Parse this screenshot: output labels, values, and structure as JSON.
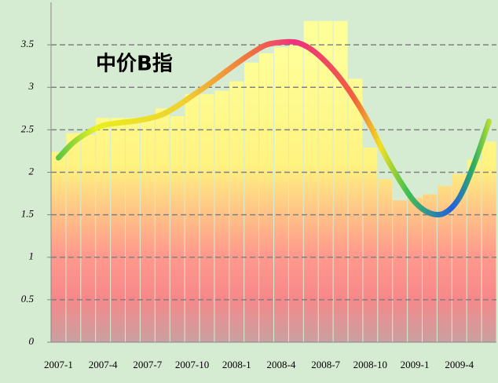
{
  "chart_data": {
    "type": "bar",
    "annotation": "中价B指",
    "categories": [
      "2007-1",
      null,
      null,
      "2007-4",
      null,
      null,
      "2007-7",
      null,
      null,
      "2007-10",
      null,
      null,
      "2008-1",
      null,
      null,
      "2008-4",
      null,
      null,
      "2008-7",
      null,
      null,
      "2008-10",
      null,
      null,
      "2009-1",
      null,
      null,
      "2009-4",
      null,
      null
    ],
    "series": [
      {
        "type": "bar",
        "values": [
          2.24,
          2.46,
          2.44,
          2.64,
          2.64,
          2.64,
          2.65,
          2.75,
          2.66,
          2.92,
          2.92,
          2.96,
          3.07,
          3.29,
          3.4,
          3.47,
          3.5,
          3.78,
          3.78,
          3.78,
          3.1,
          2.29,
          1.92,
          1.67,
          1.7,
          1.74,
          1.84,
          1.98,
          2.15,
          2.36
        ]
      },
      {
        "type": "line",
        "values": [
          2.17,
          2.35,
          2.47,
          2.55,
          2.58,
          2.6,
          2.63,
          2.68,
          2.78,
          2.9,
          3.02,
          3.15,
          3.28,
          3.4,
          3.5,
          3.53,
          3.53,
          3.45,
          3.3,
          3.1,
          2.85,
          2.55,
          2.2,
          1.9,
          1.65,
          1.52,
          1.52,
          1.7,
          2.1,
          2.6
        ]
      }
    ],
    "ylim": [
      0,
      4
    ],
    "yticks": [
      0,
      0.5,
      1,
      1.5,
      2,
      2.5,
      3,
      3.5
    ],
    "grid": true
  }
}
